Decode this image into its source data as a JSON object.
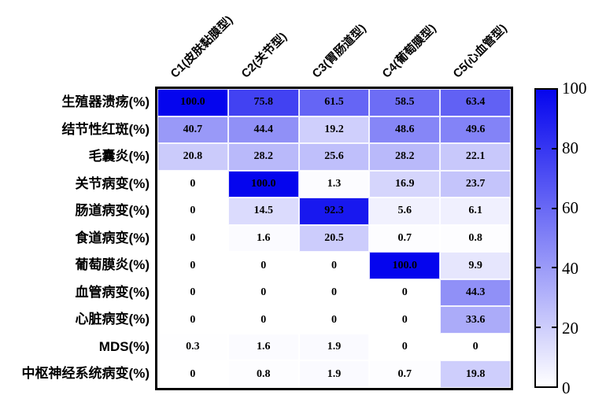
{
  "figure": {
    "background": "#ffffff"
  },
  "chart_data": {
    "type": "heatmap",
    "title": "",
    "xlabel": "",
    "ylabel": "",
    "columns": [
      "C1(皮肤黏膜型)",
      "C2(关节型)",
      "C3(胃肠道型)",
      "C4(葡萄膜型)",
      "C5(心血管型)"
    ],
    "rows": [
      "生殖器溃疡(%)",
      "结节性红斑(%)",
      "毛囊炎(%)",
      "关节病变(%)",
      "肠道病变(%)",
      "食道病变(%)",
      "葡萄膜炎(%)",
      "血管病变(%)",
      "心脏病变(%)",
      "MDS(%)",
      "中枢神经系统病变(%)"
    ],
    "values": [
      [
        100.0,
        75.8,
        61.5,
        58.5,
        63.4
      ],
      [
        40.7,
        44.4,
        19.2,
        48.6,
        49.6
      ],
      [
        20.8,
        28.2,
        25.6,
        28.2,
        22.1
      ],
      [
        0,
        100.0,
        1.3,
        16.9,
        23.7
      ],
      [
        0,
        14.5,
        92.3,
        5.6,
        6.1
      ],
      [
        0,
        1.6,
        20.5,
        0.7,
        0.8
      ],
      [
        0,
        0,
        0,
        100.0,
        9.9
      ],
      [
        0,
        0,
        0,
        0,
        44.3
      ],
      [
        0,
        0,
        0,
        0,
        33.6
      ],
      [
        0.3,
        1.6,
        1.9,
        0,
        0
      ],
      [
        0,
        0.8,
        1.9,
        0.7,
        19.8
      ]
    ],
    "cell_labels": [
      [
        "100.0",
        "75.8",
        "61.5",
        "58.5",
        "63.4"
      ],
      [
        "40.7",
        "44.4",
        "19.2",
        "48.6",
        "49.6"
      ],
      [
        "20.8",
        "28.2",
        "25.6",
        "28.2",
        "22.1"
      ],
      [
        "0",
        "100.0",
        "1.3",
        "16.9",
        "23.7"
      ],
      [
        "0",
        "14.5",
        "92.3",
        "5.6",
        "6.1"
      ],
      [
        "0",
        "1.6",
        "20.5",
        "0.7",
        "0.8"
      ],
      [
        "0",
        "0",
        "0",
        "100.0",
        "9.9"
      ],
      [
        "0",
        "0",
        "0",
        "0",
        "44.3"
      ],
      [
        "0",
        "0",
        "0",
        "0",
        "33.6"
      ],
      [
        "0.3",
        "1.6",
        "1.9",
        "0",
        "0"
      ],
      [
        "0",
        "0.8",
        "1.9",
        "0.7",
        "19.8"
      ]
    ],
    "legend_position": "right",
    "grid": false,
    "colorbar": {
      "min": 0,
      "max": 100,
      "tick_labels": [
        "100",
        "80",
        "60",
        "40",
        "20",
        "0"
      ],
      "color_max": "#0505ee",
      "color_min": "#ffffff"
    },
    "colors": {
      "cell_max": "#0505ee",
      "cell_min": "#ffffff",
      "frame": "#000000",
      "text": "#000000"
    }
  }
}
